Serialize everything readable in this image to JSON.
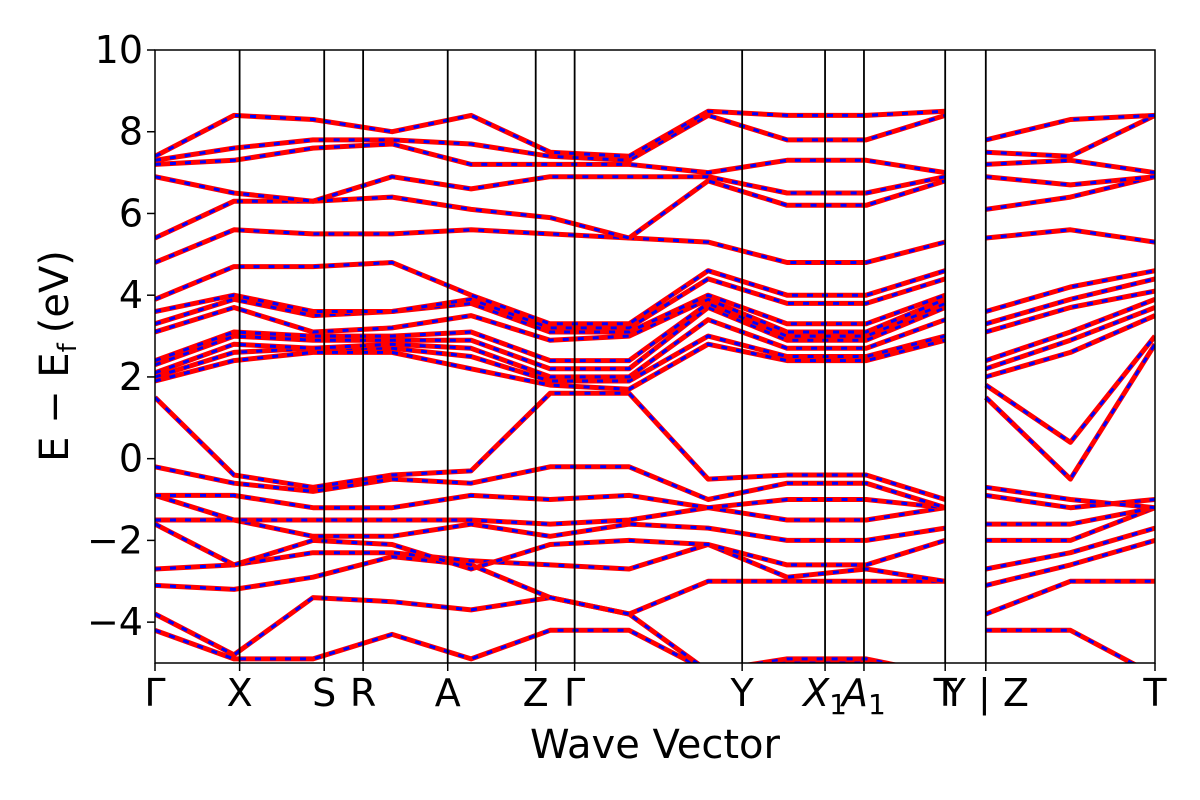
{
  "chart_data": {
    "type": "line",
    "title": "",
    "xlabel": "Wave Vector",
    "ylabel_main": "E − E",
    "ylabel_sub": "f",
    "ylabel_unit": "(eV)",
    "ylim": [
      -5,
      10
    ],
    "yticks": [
      10,
      8,
      6,
      4,
      2,
      0,
      -2,
      -4
    ],
    "ytick_labels": [
      "10",
      "8",
      "6",
      "4",
      "2",
      "0",
      "−2",
      "−4"
    ],
    "kpoints": [
      {
        "label": "Γ",
        "x": 0.0
      },
      {
        "label": "X",
        "x": 0.5
      },
      {
        "label": "S",
        "x": 1.0
      },
      {
        "label": "R",
        "x": 1.23
      },
      {
        "label": "A",
        "x": 1.73
      },
      {
        "label": "Z",
        "x": 2.25
      },
      {
        "label": "Γ",
        "x": 2.48
      },
      {
        "label": "Y",
        "x": 3.47
      },
      {
        "label": "X",
        "sub": "1",
        "x": 3.96
      },
      {
        "label": "A",
        "sub": "1",
        "x": 4.19
      },
      {
        "label": "T",
        "x": 4.67
      },
      {
        "label": "Y | Z",
        "x": 4.91
      },
      {
        "label": "T",
        "x": 5.91
      }
    ],
    "xlim": [
      0.0,
      5.91
    ],
    "breaks": [
      4.91
    ],
    "colors": {
      "series_a": "#ff0000",
      "series_b": "#0000ff"
    },
    "series_styles": {
      "series_a": "solid",
      "series_b": "dashed"
    },
    "segments": [
      {
        "from": 0,
        "to": 4.67,
        "bands": [
          {
            "name": "b1",
            "y": [
              -4.2,
              -4.9,
              -4.9,
              -4.3,
              -4.9,
              -4.2,
              -4.2,
              -5.2,
              -4.9,
              -4.9,
              -5.3
            ]
          },
          {
            "name": "b2",
            "y": [
              -3.8,
              -4.8,
              -3.4,
              -3.5,
              -3.7,
              -3.4,
              -3.8,
              -5.2,
              -5.0,
              -5.0,
              -5.2
            ]
          },
          {
            "name": "b3",
            "y": [
              -3.1,
              -3.2,
              -2.9,
              -2.4,
              -2.6,
              -3.4,
              -3.8,
              -3.0,
              -3.0,
              -3.0,
              -3.0
            ]
          },
          {
            "name": "b4",
            "y": [
              -2.7,
              -2.6,
              -2.3,
              -2.3,
              -2.5,
              -2.6,
              -2.7,
              -2.1,
              -2.9,
              -2.7,
              -3.0
            ]
          },
          {
            "name": "b5",
            "y": [
              -1.6,
              -2.6,
              -2.0,
              -2.1,
              -2.7,
              -2.1,
              -2.0,
              -2.1,
              -2.6,
              -2.6,
              -2.0
            ]
          },
          {
            "name": "b6",
            "y": [
              -1.5,
              -1.5,
              -1.9,
              -1.9,
              -1.6,
              -1.9,
              -1.6,
              -1.7,
              -2.0,
              -2.0,
              -1.7
            ]
          },
          {
            "name": "b7",
            "y": [
              -0.9,
              -1.5,
              -1.5,
              -1.5,
              -1.5,
              -1.6,
              -1.5,
              -1.2,
              -1.5,
              -1.5,
              -1.2
            ]
          },
          {
            "name": "b8",
            "y": [
              -0.9,
              -0.9,
              -1.2,
              -1.2,
              -0.9,
              -1.0,
              -0.9,
              -1.2,
              -1.0,
              -1.0,
              -1.2
            ]
          },
          {
            "name": "b9",
            "y": [
              -0.2,
              -0.6,
              -0.8,
              -0.5,
              -0.6,
              -0.2,
              -0.2,
              -1.0,
              -0.6,
              -0.6,
              -1.2
            ]
          },
          {
            "name": "b10",
            "y": [
              1.5,
              -0.4,
              -0.7,
              -0.4,
              -0.3,
              1.6,
              1.6,
              -0.5,
              -0.4,
              -0.4,
              -1.0
            ]
          },
          {
            "name": "b11",
            "y": [
              1.9,
              2.4,
              2.6,
              2.6,
              2.2,
              1.8,
              1.7,
              2.8,
              2.4,
              2.4,
              2.9
            ]
          },
          {
            "name": "b12",
            "y": [
              2.0,
              2.6,
              2.7,
              2.7,
              2.5,
              1.9,
              1.9,
              3.0,
              2.5,
              2.5,
              3.0
            ]
          },
          {
            "name": "b13",
            "y": [
              2.1,
              2.8,
              2.7,
              2.8,
              2.7,
              2.0,
              2.0,
              3.4,
              2.7,
              2.7,
              3.4
            ]
          },
          {
            "name": "b14",
            "y": [
              2.3,
              3.0,
              2.9,
              2.9,
              2.9,
              2.2,
              2.2,
              3.7,
              2.9,
              2.9,
              3.7
            ]
          },
          {
            "name": "b15",
            "y": [
              2.4,
              3.1,
              3.0,
              3.0,
              3.1,
              2.4,
              2.4,
              3.8,
              3.0,
              3.0,
              3.8
            ]
          },
          {
            "name": "b16",
            "y": [
              3.1,
              3.7,
              3.1,
              3.2,
              3.5,
              2.9,
              3.0,
              3.9,
              3.1,
              3.1,
              3.9
            ]
          },
          {
            "name": "b17",
            "y": [
              3.3,
              3.9,
              3.5,
              3.6,
              3.8,
              3.1,
              3.1,
              4.0,
              3.3,
              3.3,
              4.0
            ]
          },
          {
            "name": "b18",
            "y": [
              3.6,
              4.0,
              3.6,
              3.6,
              3.9,
              3.2,
              3.2,
              4.4,
              3.8,
              3.8,
              4.4
            ]
          },
          {
            "name": "b19",
            "y": [
              3.9,
              4.7,
              4.7,
              4.8,
              4.0,
              3.3,
              3.3,
              4.6,
              4.0,
              4.0,
              4.6
            ]
          },
          {
            "name": "b20",
            "y": [
              4.8,
              5.6,
              5.5,
              5.5,
              5.6,
              5.5,
              5.4,
              5.3,
              4.8,
              4.8,
              5.3
            ]
          },
          {
            "name": "b21",
            "y": [
              5.4,
              6.3,
              6.3,
              6.4,
              6.1,
              5.9,
              5.4,
              6.8,
              6.2,
              6.2,
              6.8
            ]
          },
          {
            "name": "b22",
            "y": [
              6.9,
              6.5,
              6.3,
              6.9,
              6.6,
              6.9,
              6.9,
              6.9,
              6.5,
              6.5,
              6.9
            ]
          },
          {
            "name": "b23",
            "y": [
              7.2,
              7.3,
              7.6,
              7.7,
              7.2,
              7.2,
              7.2,
              7.0,
              7.3,
              7.3,
              7.0
            ]
          },
          {
            "name": "b24",
            "y": [
              7.3,
              7.6,
              7.8,
              7.8,
              7.7,
              7.4,
              7.3,
              8.4,
              7.8,
              7.8,
              8.4
            ]
          },
          {
            "name": "b25",
            "y": [
              7.4,
              8.4,
              8.3,
              8.0,
              8.4,
              7.5,
              7.4,
              8.5,
              8.4,
              8.4,
              8.5
            ]
          }
        ]
      },
      {
        "from": 4.91,
        "to": 5.91,
        "bands": [
          {
            "name": "c1",
            "y": [
              -4.2,
              -4.2,
              -5.3
            ]
          },
          {
            "name": "c2",
            "y": [
              -3.8,
              -3.0,
              -3.0
            ]
          },
          {
            "name": "c3",
            "y": [
              -3.1,
              -2.6,
              -2.0
            ]
          },
          {
            "name": "c4",
            "y": [
              -2.7,
              -2.3,
              -1.7
            ]
          },
          {
            "name": "c5",
            "y": [
              -2.0,
              -2.0,
              -1.2
            ]
          },
          {
            "name": "c6",
            "y": [
              -1.6,
              -1.6,
              -1.2
            ]
          },
          {
            "name": "c7",
            "y": [
              -0.9,
              -1.2,
              -1.0
            ]
          },
          {
            "name": "c8",
            "y": [
              -0.7,
              -1.0,
              -1.2
            ]
          },
          {
            "name": "c9",
            "y": [
              1.5,
              -0.5,
              2.8
            ]
          },
          {
            "name": "c10",
            "y": [
              1.8,
              0.4,
              3.0
            ]
          },
          {
            "name": "c11",
            "y": [
              2.0,
              2.6,
              3.5
            ]
          },
          {
            "name": "c12",
            "y": [
              2.2,
              2.9,
              3.7
            ]
          },
          {
            "name": "c13",
            "y": [
              2.4,
              3.1,
              3.9
            ]
          },
          {
            "name": "c14",
            "y": [
              3.1,
              3.7,
              4.1
            ]
          },
          {
            "name": "c15",
            "y": [
              3.3,
              3.9,
              4.4
            ]
          },
          {
            "name": "c16",
            "y": [
              3.6,
              4.2,
              4.6
            ]
          },
          {
            "name": "c17",
            "y": [
              5.4,
              5.6,
              5.3
            ]
          },
          {
            "name": "c18",
            "y": [
              6.1,
              6.4,
              6.9
            ]
          },
          {
            "name": "c19",
            "y": [
              6.9,
              6.7,
              6.9
            ]
          },
          {
            "name": "c20",
            "y": [
              7.2,
              7.3,
              7.0
            ]
          },
          {
            "name": "c21",
            "y": [
              7.5,
              7.4,
              8.4
            ]
          },
          {
            "name": "c22",
            "y": [
              7.8,
              8.3,
              8.4
            ]
          }
        ]
      }
    ]
  }
}
